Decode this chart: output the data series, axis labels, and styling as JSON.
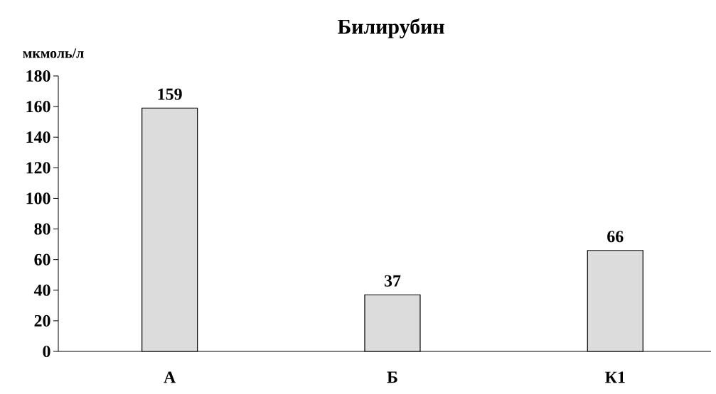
{
  "chart_data": {
    "type": "bar",
    "title": "Билирубин",
    "ylabel": "мкмоль/л",
    "categories": [
      "А",
      "Б",
      "К1"
    ],
    "values": [
      159,
      37,
      66
    ],
    "color": "#dcdcdc",
    "ylim": [
      0,
      180
    ],
    "yticks": [
      0,
      20,
      40,
      60,
      80,
      100,
      120,
      140,
      160,
      180
    ],
    "data_labels": true
  }
}
